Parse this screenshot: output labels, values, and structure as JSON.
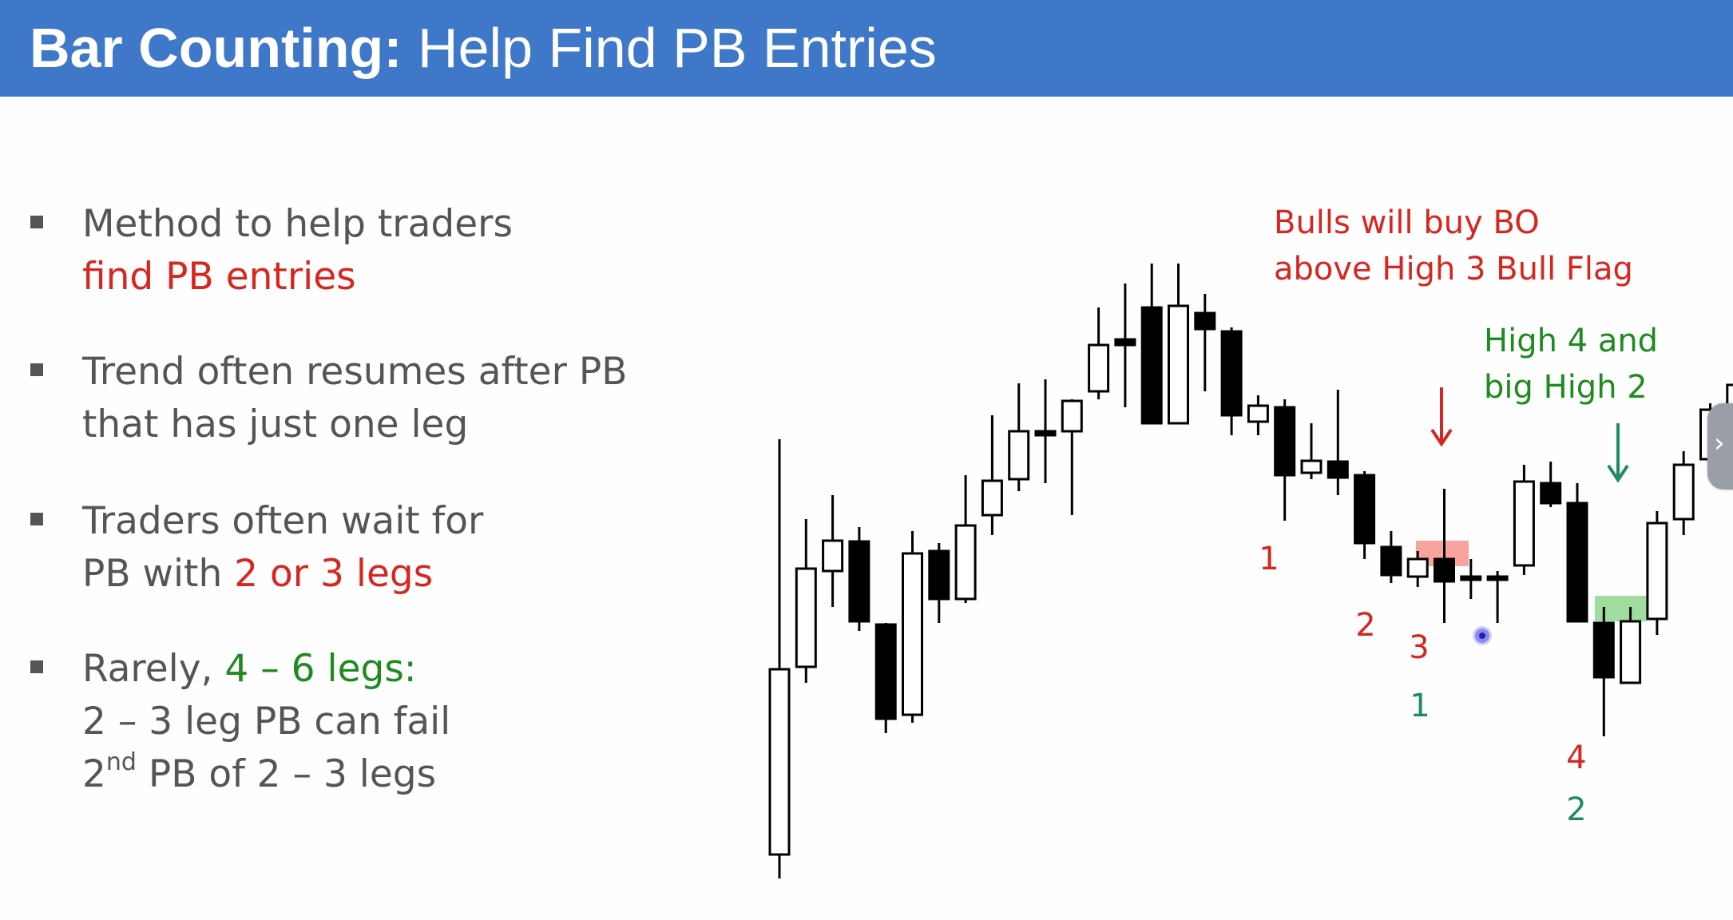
{
  "slide": {
    "title_bold": "Bar Counting:",
    "title_rest": " Help Find PB Entries"
  },
  "bullets": [
    {
      "line1": "Method to help traders",
      "line2_red": "find PB entries"
    },
    {
      "line1": "Trend often resumes after PB",
      "line2": "that has just one leg"
    },
    {
      "line1": "Traders often wait for",
      "line2_prefix": "PB with ",
      "line2_red": "2 or 3 legs"
    },
    {
      "line1_prefix": "Rarely, ",
      "line1_green": "4 – 6 legs:",
      "line2": "2 – 3 leg PB can fail",
      "line3_ord": "2",
      "line3_sup": "nd",
      "line3_rest": " PB of 2 – 3 legs"
    }
  ],
  "annotations": {
    "bulls_line1": "Bulls will buy BO",
    "bulls_line2": "above High 3 Bull Flag",
    "high4_line1": "High 4 and",
    "high4_line2": "big High 2",
    "counts": [
      "1",
      "2",
      "3",
      "1",
      "4",
      "2"
    ]
  },
  "colors": {
    "header": "#3f78c8",
    "red": "#d6261f",
    "green": "#1f8a1f",
    "teal": "#1f8a62"
  },
  "icons": {
    "next": "chevron-right-icon",
    "down_arrow": "down-arrow-icon"
  },
  "chart_data": {
    "type": "candlestick",
    "title": "",
    "xlabel": "",
    "ylabel": "",
    "bars": [
      {
        "o": 1070,
        "h": 1100,
        "l": 550,
        "c": 838
      },
      {
        "o": 835,
        "h": 650,
        "l": 855,
        "c": 712
      },
      {
        "o": 715,
        "h": 620,
        "l": 760,
        "c": 677
      },
      {
        "o": 678,
        "h": 660,
        "l": 790,
        "c": 778
      },
      {
        "o": 782,
        "h": 780,
        "l": 918,
        "c": 900
      },
      {
        "o": 895,
        "h": 665,
        "l": 905,
        "c": 693
      },
      {
        "o": 690,
        "h": 680,
        "l": 780,
        "c": 750
      },
      {
        "o": 750,
        "h": 595,
        "l": 755,
        "c": 658
      },
      {
        "o": 645,
        "h": 520,
        "l": 670,
        "c": 602
      },
      {
        "o": 600,
        "h": 480,
        "l": 615,
        "c": 540
      },
      {
        "o": 540,
        "h": 475,
        "l": 605,
        "c": 545
      },
      {
        "o": 540,
        "h": 500,
        "l": 645,
        "c": 502
      },
      {
        "o": 490,
        "h": 385,
        "l": 500,
        "c": 432
      },
      {
        "o": 425,
        "h": 355,
        "l": 510,
        "c": 432
      },
      {
        "o": 385,
        "h": 330,
        "l": 530,
        "c": 530
      },
      {
        "o": 530,
        "h": 330,
        "l": 530,
        "c": 383
      },
      {
        "o": 392,
        "h": 368,
        "l": 490,
        "c": 412
      },
      {
        "o": 415,
        "h": 410,
        "l": 545,
        "c": 520
      },
      {
        "o": 528,
        "h": 495,
        "l": 545,
        "c": 508
      },
      {
        "o": 510,
        "h": 500,
        "l": 652,
        "c": 595
      },
      {
        "o": 592,
        "h": 530,
        "l": 600,
        "c": 577
      },
      {
        "o": 578,
        "h": 488,
        "l": 620,
        "c": 598
      },
      {
        "o": 595,
        "h": 590,
        "l": 700,
        "c": 680
      },
      {
        "o": 685,
        "h": 665,
        "l": 730,
        "c": 720
      },
      {
        "o": 722,
        "h": 690,
        "l": 735,
        "c": 700
      },
      {
        "o": 700,
        "h": 612,
        "l": 780,
        "c": 728
      },
      {
        "o": 722,
        "h": 700,
        "l": 750,
        "c": 722
      },
      {
        "o": 722,
        "h": 715,
        "l": 780,
        "c": 722
      },
      {
        "o": 708,
        "h": 582,
        "l": 720,
        "c": 603
      },
      {
        "o": 605,
        "h": 578,
        "l": 635,
        "c": 630
      },
      {
        "o": 630,
        "h": 605,
        "l": 778,
        "c": 778
      },
      {
        "o": 780,
        "h": 760,
        "l": 922,
        "c": 848
      },
      {
        "o": 855,
        "h": 760,
        "l": 855,
        "c": 778
      },
      {
        "o": 775,
        "h": 640,
        "l": 795,
        "c": 655
      },
      {
        "o": 650,
        "h": 565,
        "l": 670,
        "c": 582
      },
      {
        "o": 575,
        "h": 505,
        "l": 595,
        "c": 513
      },
      {
        "o": 508,
        "h": 420,
        "l": 595,
        "c": 482
      }
    ],
    "price_axis": "inverted-screen"
  }
}
